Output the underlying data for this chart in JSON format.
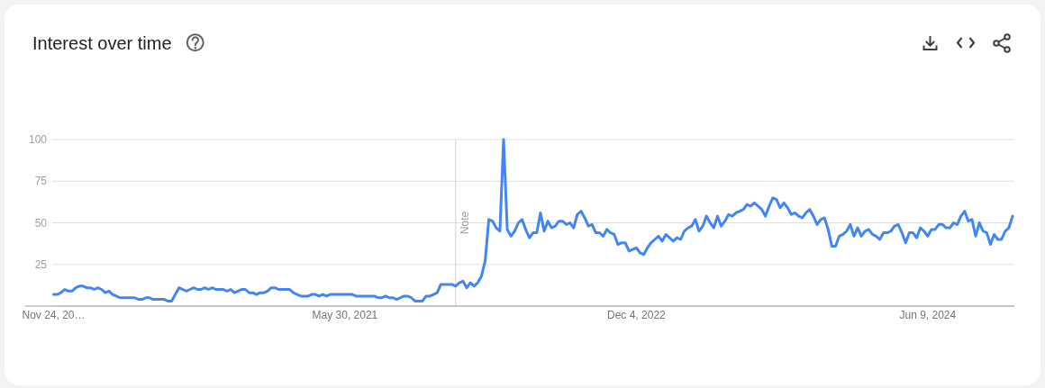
{
  "chart_data": {
    "type": "line",
    "title": "Interest over time",
    "x": [
      "2019-11-24",
      "2019-12-01",
      "2019-12-08",
      "2019-12-15",
      "2019-12-22",
      "2019-12-29",
      "2020-01-05",
      "2020-01-12",
      "2020-01-19",
      "2020-01-26",
      "2020-02-02",
      "2020-02-09",
      "2020-02-16",
      "2020-02-23",
      "2020-03-01",
      "2020-03-08",
      "2020-03-15",
      "2020-03-22",
      "2020-03-29",
      "2020-04-26",
      "2020-05-03",
      "2020-05-10",
      "2020-05-17",
      "2020-05-24",
      "2020-05-31",
      "2020-06-21",
      "2020-06-28",
      "2020-07-05",
      "2020-07-12",
      "2020-07-19",
      "2020-07-26",
      "2020-08-02",
      "2020-08-09",
      "2020-08-16",
      "2020-08-23",
      "2020-08-30",
      "2020-09-06",
      "2020-09-13",
      "2020-09-20",
      "2020-09-27",
      "2020-10-11",
      "2020-10-18",
      "2020-10-25",
      "2020-11-01",
      "2020-11-08",
      "2020-11-15",
      "2020-11-22",
      "2020-11-29",
      "2020-12-06",
      "2020-12-13",
      "2020-12-20",
      "2020-12-27",
      "2021-01-03",
      "2021-01-10",
      "2021-01-17",
      "2021-01-24",
      "2021-02-14",
      "2021-02-21",
      "2021-02-28",
      "2021-03-07",
      "2021-03-21",
      "2021-03-28",
      "2021-04-04",
      "2021-04-11",
      "2021-04-18",
      "2021-04-25",
      "2021-05-02",
      "2021-06-13",
      "2021-06-20",
      "2021-07-25",
      "2021-08-01",
      "2021-08-08",
      "2021-08-15",
      "2021-08-22",
      "2021-08-29",
      "2021-09-05",
      "2021-09-12",
      "2021-09-19",
      "2021-09-26",
      "2021-10-03",
      "2021-10-10",
      "2021-10-24",
      "2021-10-31",
      "2021-11-07",
      "2021-11-14",
      "2021-11-21",
      "2021-11-28",
      "2021-12-19",
      "2021-12-26",
      "2022-01-02",
      "2022-01-09",
      "2022-01-16",
      "2022-01-23",
      "2022-01-30",
      "2022-02-06",
      "2022-02-13",
      "2022-02-20",
      "2022-02-27",
      "2022-03-06",
      "2022-03-13",
      "2022-03-20",
      "2022-03-27",
      "2022-04-03",
      "2022-04-10",
      "2022-04-17",
      "2022-04-24",
      "2022-05-01",
      "2022-05-08",
      "2022-05-15",
      "2022-05-22",
      "2022-05-29",
      "2022-06-05",
      "2022-06-12",
      "2022-06-19",
      "2022-06-26",
      "2022-07-03",
      "2022-07-10",
      "2022-07-17",
      "2022-07-24",
      "2022-07-31",
      "2022-08-07",
      "2022-08-14",
      "2022-08-21",
      "2022-08-28",
      "2022-09-04",
      "2022-09-11",
      "2022-09-18",
      "2022-09-25",
      "2022-10-02",
      "2022-10-09",
      "2022-10-16",
      "2022-10-23",
      "2022-10-30",
      "2022-11-06",
      "2022-11-13",
      "2022-11-20",
      "2022-11-27",
      "2022-12-04",
      "2022-12-11",
      "2022-12-18",
      "2022-12-25",
      "2023-01-01",
      "2023-01-08",
      "2023-01-15",
      "2023-01-22",
      "2023-01-29",
      "2023-02-05",
      "2023-02-12",
      "2023-02-19",
      "2023-02-26",
      "2023-03-05",
      "2023-03-12",
      "2023-03-19",
      "2023-03-26",
      "2023-04-02",
      "2023-04-09",
      "2023-04-16",
      "2023-04-23",
      "2023-04-30",
      "2023-05-07",
      "2023-05-14",
      "2023-05-21",
      "2023-05-28",
      "2023-06-04",
      "2023-06-11",
      "2023-06-18",
      "2023-06-25",
      "2023-07-02",
      "2023-07-09",
      "2023-07-16",
      "2023-07-23",
      "2023-07-30",
      "2023-08-06",
      "2023-08-13",
      "2023-08-20",
      "2023-08-27",
      "2023-09-03",
      "2023-09-10",
      "2023-09-17",
      "2023-09-24",
      "2023-10-01",
      "2023-10-08",
      "2023-10-15",
      "2023-10-22",
      "2023-10-29",
      "2023-11-05",
      "2023-11-12",
      "2023-11-19",
      "2023-11-26",
      "2023-12-03",
      "2023-12-10",
      "2023-12-17",
      "2023-12-24",
      "2023-12-31",
      "2024-01-07",
      "2024-01-14",
      "2024-01-21",
      "2024-01-28",
      "2024-02-04",
      "2024-02-11",
      "2024-02-18",
      "2024-02-25",
      "2024-03-03",
      "2024-03-10",
      "2024-03-17",
      "2024-03-24",
      "2024-03-31",
      "2024-04-07",
      "2024-04-14",
      "2024-04-21",
      "2024-04-28",
      "2024-05-05",
      "2024-05-12",
      "2024-05-19",
      "2024-05-26",
      "2024-06-02",
      "2024-06-09",
      "2024-06-16",
      "2024-06-23",
      "2024-06-30",
      "2024-07-07",
      "2024-07-14",
      "2024-07-21",
      "2024-07-28",
      "2024-08-04",
      "2024-08-11",
      "2024-08-18",
      "2024-08-25",
      "2024-09-01",
      "2024-09-08",
      "2024-09-15",
      "2024-09-22",
      "2024-09-29",
      "2024-10-06",
      "2024-10-13",
      "2024-10-20",
      "2024-10-27",
      "2024-11-03",
      "2024-11-10",
      "2024-11-17"
    ],
    "values": [
      7,
      7,
      8,
      10,
      9,
      9,
      11,
      12,
      12,
      11,
      11,
      10,
      11,
      10,
      8,
      9,
      7,
      6,
      5,
      5,
      4,
      4,
      5,
      5,
      4,
      4,
      3,
      3,
      7,
      11,
      10,
      9,
      10,
      11,
      10,
      10,
      11,
      10,
      11,
      10,
      10,
      9,
      10,
      8,
      9,
      10,
      10,
      8,
      8,
      7,
      8,
      8,
      9,
      11,
      11,
      10,
      10,
      8,
      7,
      6,
      6,
      7,
      7,
      6,
      7,
      6,
      7,
      7,
      6,
      6,
      5,
      5,
      6,
      5,
      5,
      4,
      5,
      6,
      6,
      5,
      3,
      3,
      6,
      6,
      7,
      8,
      13,
      13,
      12,
      14,
      15,
      11,
      14,
      12,
      14,
      18,
      27,
      52,
      51,
      47,
      45,
      100,
      46,
      42,
      45,
      50,
      52,
      46,
      41,
      44,
      44,
      56,
      45,
      51,
      47,
      48,
      51,
      51,
      49,
      50,
      47,
      55,
      57,
      53,
      48,
      49,
      44,
      44,
      42,
      46,
      44,
      43,
      37,
      38,
      38,
      33,
      34,
      35,
      32,
      31,
      35,
      38,
      40,
      42,
      39,
      43,
      41,
      39,
      41,
      40,
      45,
      47,
      48,
      52,
      45,
      48,
      54,
      50,
      47,
      54,
      48,
      51,
      55,
      54,
      56,
      57,
      58,
      61,
      60,
      62,
      60,
      58,
      54,
      60,
      65,
      64,
      59,
      62,
      59,
      55,
      56,
      54,
      53,
      56,
      58,
      54,
      49,
      52,
      53,
      46,
      36,
      36,
      42,
      43,
      45,
      49,
      42,
      47,
      42,
      45,
      46,
      43,
      42,
      40,
      44,
      44,
      45,
      48,
      49,
      44,
      38,
      44,
      44,
      41,
      47,
      45,
      42,
      46,
      46,
      49,
      49,
      47,
      47,
      50,
      49,
      54,
      57,
      51,
      52,
      42,
      50,
      45,
      44,
      37,
      43,
      40,
      40,
      45,
      47,
      54
    ],
    "color": "#4285f4",
    "xlim": [
      "2019-11-24",
      "2024-11-17"
    ],
    "xticks": [
      {
        "value": "2019-11-24",
        "label": "Nov 24, 20…"
      },
      {
        "value": "2021-05-30",
        "label": "May 30, 2021"
      },
      {
        "value": "2022-12-04",
        "label": "Dec 4, 2022"
      },
      {
        "value": "2024-06-09",
        "label": "Jun 9, 2024"
      }
    ],
    "ylim": [
      0,
      100
    ],
    "yticks": [
      {
        "value": 0,
        "label": null
      },
      25,
      50,
      75,
      100
    ],
    "grid": "y",
    "ref_lines": [
      {
        "axis": "x",
        "value": "2021-12-26",
        "label": "Note"
      }
    ]
  }
}
